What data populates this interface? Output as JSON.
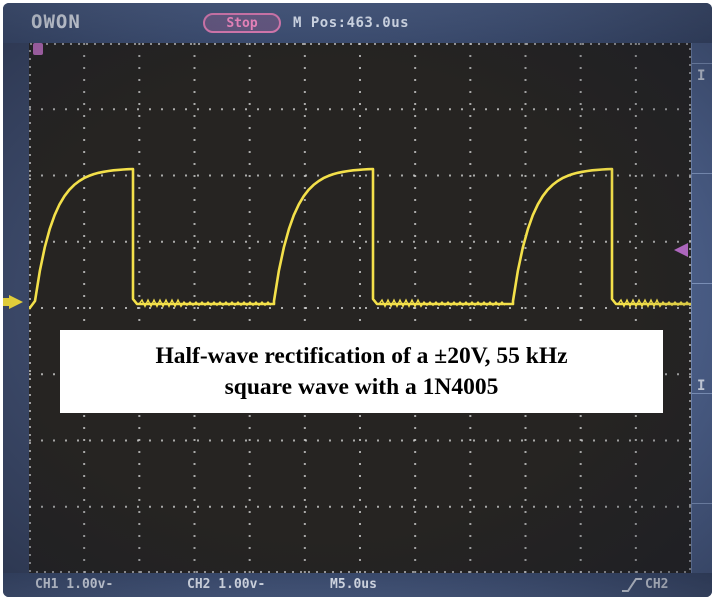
{
  "scope": {
    "brand": "OWON",
    "state": "Stop",
    "m_pos": "M Pos:463.0us",
    "side_labels": [
      "I",
      "I"
    ]
  },
  "status_bar": {
    "ch1_scale": "CH1 1.00v-",
    "ch2_scale": "CH2 1.00v-",
    "timebase": "M5.0us",
    "trigger_source": "CH2"
  },
  "caption": {
    "line1": "Half-wave rectification of a ±20V, 55 kHz",
    "line2": "square wave with a 1N4005"
  },
  "colors": {
    "trace": "#f3e04a",
    "screen": "#262422",
    "frame": "#3a4766",
    "grid": "#d8d8d8",
    "stop_badge": "#ff8fcb"
  },
  "icons": {
    "trigger_edge": "rising-edge-icon",
    "ch1_marker": "ch1-ground-marker-icon",
    "trigger_level": "trigger-level-marker-icon"
  }
}
